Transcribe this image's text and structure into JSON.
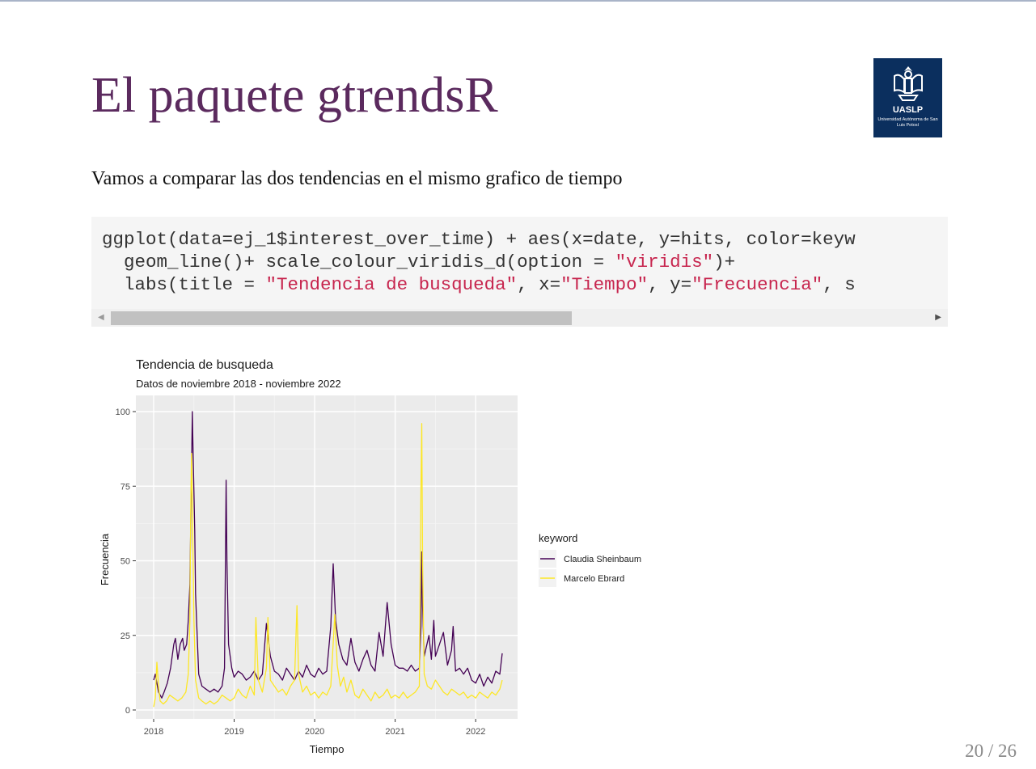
{
  "slide": {
    "title": "El paquete gtrendsR",
    "intro": "Vamos a comparar las dos tendencias en el mismo grafico de tiempo",
    "page_current": "20",
    "page_separator": "/",
    "page_total": "26"
  },
  "logo": {
    "abbr": "UASLP",
    "full_name": "Universidad Autónoma de San Luis Potosí",
    "icon": "university-crest-icon",
    "background": "#0b2f5e"
  },
  "code": {
    "line1": "ggplot(data=ej_1$interest_over_time) + aes(x=date, y=hits, color=keyw",
    "line2a": "  geom_line()+ scale_colour_viridis_d(option = ",
    "line2s": "\"viridis\"",
    "line2b": ")+",
    "line3a": "  labs(title = ",
    "line3s1": "\"Tendencia de busqueda\"",
    "line3b": ", x=",
    "line3s2": "\"Tiempo\"",
    "line3c": ", y=",
    "line3s3": "\"Frecuencia\"",
    "line3d": ", s",
    "scroll_left_icon": "scroll-left-arrow-icon",
    "scroll_right_icon": "scroll-right-arrow-icon",
    "string_color": "#c7254e"
  },
  "chart_data": {
    "type": "line",
    "title": "Tendencia de busqueda",
    "subtitle": "Datos de noviembre 2018 - noviembre 2022",
    "xlabel": "Tiempo",
    "ylabel": "Frecuencia",
    "x_ticks": [
      "2018",
      "2019",
      "2020",
      "2021",
      "2022"
    ],
    "y_ticks": [
      0,
      25,
      50,
      75,
      100
    ],
    "ylim": [
      0,
      100
    ],
    "xlim": [
      2018.0,
      2022.35
    ],
    "legend_title": "keyword",
    "legend_position": "right",
    "grid": true,
    "panel_background": "#ebebeb",
    "series": [
      {
        "name": "Claudia Sheinbaum",
        "color": "#440154",
        "points": [
          [
            2018.0,
            10
          ],
          [
            2018.02,
            12
          ],
          [
            2018.04,
            9
          ],
          [
            2018.06,
            6
          ],
          [
            2018.08,
            5
          ],
          [
            2018.1,
            4
          ],
          [
            2018.13,
            6
          ],
          [
            2018.17,
            9
          ],
          [
            2018.21,
            14
          ],
          [
            2018.25,
            22
          ],
          [
            2018.27,
            24
          ],
          [
            2018.3,
            17
          ],
          [
            2018.33,
            22
          ],
          [
            2018.36,
            24
          ],
          [
            2018.38,
            20
          ],
          [
            2018.41,
            22
          ],
          [
            2018.43,
            30
          ],
          [
            2018.45,
            42
          ],
          [
            2018.47,
            80
          ],
          [
            2018.48,
            100
          ],
          [
            2018.49,
            86
          ],
          [
            2018.51,
            60
          ],
          [
            2018.52,
            39
          ],
          [
            2018.54,
            25
          ],
          [
            2018.56,
            12
          ],
          [
            2018.6,
            8
          ],
          [
            2018.65,
            7
          ],
          [
            2018.7,
            6
          ],
          [
            2018.75,
            7
          ],
          [
            2018.8,
            6
          ],
          [
            2018.85,
            8
          ],
          [
            2018.88,
            14
          ],
          [
            2018.9,
            77
          ],
          [
            2018.91,
            50
          ],
          [
            2018.93,
            22
          ],
          [
            2018.97,
            14
          ],
          [
            2019.0,
            11
          ],
          [
            2019.05,
            13
          ],
          [
            2019.1,
            12
          ],
          [
            2019.15,
            10
          ],
          [
            2019.2,
            11
          ],
          [
            2019.25,
            13
          ],
          [
            2019.3,
            10
          ],
          [
            2019.35,
            12
          ],
          [
            2019.4,
            29
          ],
          [
            2019.45,
            18
          ],
          [
            2019.5,
            13
          ],
          [
            2019.55,
            12
          ],
          [
            2019.6,
            10
          ],
          [
            2019.65,
            14
          ],
          [
            2019.7,
            12
          ],
          [
            2019.75,
            10
          ],
          [
            2019.8,
            13
          ],
          [
            2019.85,
            11
          ],
          [
            2019.9,
            15
          ],
          [
            2019.95,
            12
          ],
          [
            2020.0,
            11
          ],
          [
            2020.05,
            14
          ],
          [
            2020.1,
            12
          ],
          [
            2020.15,
            13
          ],
          [
            2020.2,
            28
          ],
          [
            2020.23,
            49
          ],
          [
            2020.26,
            30
          ],
          [
            2020.3,
            22
          ],
          [
            2020.35,
            17
          ],
          [
            2020.4,
            15
          ],
          [
            2020.45,
            24
          ],
          [
            2020.5,
            16
          ],
          [
            2020.55,
            13
          ],
          [
            2020.6,
            17
          ],
          [
            2020.65,
            20
          ],
          [
            2020.7,
            15
          ],
          [
            2020.75,
            13
          ],
          [
            2020.8,
            26
          ],
          [
            2020.85,
            18
          ],
          [
            2020.9,
            36
          ],
          [
            2020.95,
            22
          ],
          [
            2021.0,
            15
          ],
          [
            2021.05,
            14
          ],
          [
            2021.1,
            14
          ],
          [
            2021.15,
            13
          ],
          [
            2021.2,
            15
          ],
          [
            2021.25,
            13
          ],
          [
            2021.3,
            14
          ],
          [
            2021.32,
            28
          ],
          [
            2021.33,
            53
          ],
          [
            2021.34,
            35
          ],
          [
            2021.36,
            18
          ],
          [
            2021.42,
            25
          ],
          [
            2021.45,
            17
          ],
          [
            2021.48,
            30
          ],
          [
            2021.5,
            18
          ],
          [
            2021.55,
            22
          ],
          [
            2021.6,
            26
          ],
          [
            2021.65,
            15
          ],
          [
            2021.7,
            20
          ],
          [
            2021.72,
            28
          ],
          [
            2021.75,
            13
          ],
          [
            2021.8,
            14
          ],
          [
            2021.85,
            12
          ],
          [
            2021.9,
            14
          ],
          [
            2021.95,
            10
          ],
          [
            2022.0,
            9
          ],
          [
            2022.05,
            12
          ],
          [
            2022.1,
            8
          ],
          [
            2022.15,
            11
          ],
          [
            2022.2,
            9
          ],
          [
            2022.25,
            13
          ],
          [
            2022.3,
            12
          ],
          [
            2022.33,
            19
          ]
        ]
      },
      {
        "name": "Marcelo Ebrard",
        "color": "#fde725",
        "points": [
          [
            2018.0,
            1
          ],
          [
            2018.02,
            4
          ],
          [
            2018.04,
            16
          ],
          [
            2018.06,
            8
          ],
          [
            2018.08,
            3
          ],
          [
            2018.12,
            2
          ],
          [
            2018.16,
            3
          ],
          [
            2018.2,
            5
          ],
          [
            2018.25,
            4
          ],
          [
            2018.3,
            3
          ],
          [
            2018.35,
            4
          ],
          [
            2018.4,
            6
          ],
          [
            2018.43,
            12
          ],
          [
            2018.45,
            30
          ],
          [
            2018.46,
            65
          ],
          [
            2018.47,
            86
          ],
          [
            2018.48,
            70
          ],
          [
            2018.5,
            30
          ],
          [
            2018.52,
            10
          ],
          [
            2018.56,
            4
          ],
          [
            2018.6,
            3
          ],
          [
            2018.65,
            2
          ],
          [
            2018.7,
            3
          ],
          [
            2018.75,
            2
          ],
          [
            2018.8,
            3
          ],
          [
            2018.85,
            5
          ],
          [
            2018.9,
            4
          ],
          [
            2018.95,
            3
          ],
          [
            2019.0,
            4
          ],
          [
            2019.05,
            7
          ],
          [
            2019.1,
            5
          ],
          [
            2019.15,
            4
          ],
          [
            2019.2,
            8
          ],
          [
            2019.25,
            5
          ],
          [
            2019.27,
            31
          ],
          [
            2019.3,
            10
          ],
          [
            2019.35,
            6
          ],
          [
            2019.4,
            14
          ],
          [
            2019.42,
            31
          ],
          [
            2019.45,
            10
          ],
          [
            2019.5,
            8
          ],
          [
            2019.55,
            6
          ],
          [
            2019.6,
            7
          ],
          [
            2019.65,
            5
          ],
          [
            2019.7,
            8
          ],
          [
            2019.75,
            10
          ],
          [
            2019.78,
            35
          ],
          [
            2019.8,
            12
          ],
          [
            2019.85,
            6
          ],
          [
            2019.9,
            8
          ],
          [
            2019.95,
            5
          ],
          [
            2020.0,
            6
          ],
          [
            2020.05,
            4
          ],
          [
            2020.1,
            6
          ],
          [
            2020.15,
            5
          ],
          [
            2020.2,
            8
          ],
          [
            2020.25,
            32
          ],
          [
            2020.28,
            15
          ],
          [
            2020.32,
            8
          ],
          [
            2020.36,
            11
          ],
          [
            2020.4,
            6
          ],
          [
            2020.45,
            10
          ],
          [
            2020.5,
            5
          ],
          [
            2020.55,
            4
          ],
          [
            2020.6,
            7
          ],
          [
            2020.65,
            5
          ],
          [
            2020.7,
            3
          ],
          [
            2020.75,
            6
          ],
          [
            2020.8,
            4
          ],
          [
            2020.85,
            5
          ],
          [
            2020.9,
            7
          ],
          [
            2020.95,
            4
          ],
          [
            2021.0,
            5
          ],
          [
            2021.05,
            4
          ],
          [
            2021.1,
            6
          ],
          [
            2021.15,
            4
          ],
          [
            2021.2,
            5
          ],
          [
            2021.25,
            6
          ],
          [
            2021.3,
            8
          ],
          [
            2021.32,
            74
          ],
          [
            2021.33,
            96
          ],
          [
            2021.34,
            50
          ],
          [
            2021.36,
            12
          ],
          [
            2021.4,
            8
          ],
          [
            2021.45,
            7
          ],
          [
            2021.5,
            10
          ],
          [
            2021.55,
            8
          ],
          [
            2021.6,
            6
          ],
          [
            2021.65,
            5
          ],
          [
            2021.7,
            7
          ],
          [
            2021.75,
            6
          ],
          [
            2021.8,
            5
          ],
          [
            2021.85,
            6
          ],
          [
            2021.9,
            4
          ],
          [
            2021.95,
            5
          ],
          [
            2022.0,
            4
          ],
          [
            2022.05,
            6
          ],
          [
            2022.1,
            5
          ],
          [
            2022.15,
            4
          ],
          [
            2022.2,
            6
          ],
          [
            2022.25,
            5
          ],
          [
            2022.3,
            7
          ],
          [
            2022.33,
            10
          ]
        ]
      }
    ]
  }
}
